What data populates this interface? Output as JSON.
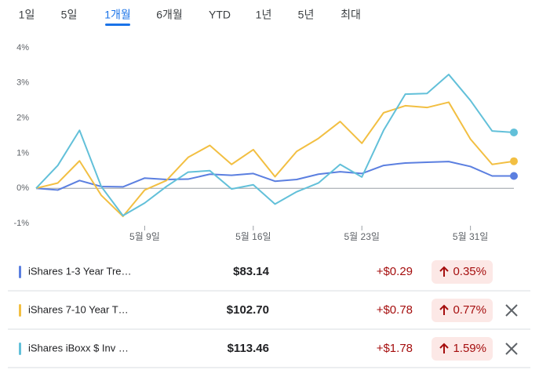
{
  "tabs": [
    "1일",
    "5일",
    "1개월",
    "6개월",
    "YTD",
    "1년",
    "5년",
    "최대"
  ],
  "selected_tab": 2,
  "chart_data": {
    "type": "line",
    "categories": [
      null,
      null,
      null,
      null,
      null,
      "5월 9일",
      null,
      null,
      null,
      null,
      "5월 16일",
      null,
      null,
      null,
      null,
      "5월 23일",
      null,
      null,
      null,
      null,
      "5월 31일",
      null,
      null
    ],
    "series": [
      {
        "name": "iShares 1-3 Year Tre…",
        "color": "#5b7fe0",
        "values": [
          0,
          -0.05,
          0.22,
          0.05,
          0.04,
          0.29,
          0.25,
          0.26,
          0.4,
          0.37,
          0.42,
          0.2,
          0.25,
          0.4,
          0.47,
          0.42,
          0.65,
          0.72,
          0.74,
          0.76,
          0.62,
          0.35,
          0.35
        ]
      },
      {
        "name": "iShares 7-10 Year T…",
        "color": "#f2bf42",
        "values": [
          0,
          0.15,
          0.78,
          -0.2,
          -0.8,
          -0.05,
          0.22,
          0.88,
          1.22,
          0.68,
          1.1,
          0.33,
          1.05,
          1.42,
          1.9,
          1.28,
          2.15,
          2.35,
          2.3,
          2.45,
          1.4,
          0.68,
          0.77
        ]
      },
      {
        "name": "iShares iBoxx $ Inv …",
        "color": "#62c0d9",
        "values": [
          0,
          0.65,
          1.65,
          0.05,
          -0.78,
          -0.42,
          0.05,
          0.46,
          0.5,
          -0.02,
          0.1,
          -0.45,
          -0.1,
          0.15,
          0.68,
          0.32,
          1.65,
          2.68,
          2.7,
          3.24,
          2.5,
          1.63,
          1.59
        ]
      }
    ],
    "ylim": [
      -1,
      4
    ],
    "yticks": [
      {
        "value": -1,
        "label": "-1%"
      },
      {
        "value": 0,
        "label": "0%"
      },
      {
        "value": 1,
        "label": "1%"
      },
      {
        "value": 2,
        "label": "2%"
      },
      {
        "value": 3,
        "label": "3%"
      },
      {
        "value": 4,
        "label": "4%"
      }
    ]
  },
  "rows": [
    {
      "price": "$83.14",
      "change": "+$0.29",
      "percent": "0.35%",
      "removable": false
    },
    {
      "price": "$102.70",
      "change": "+$0.78",
      "percent": "0.77%",
      "removable": true
    },
    {
      "price": "$113.46",
      "change": "+$1.78",
      "percent": "1.59%",
      "removable": true
    }
  ]
}
